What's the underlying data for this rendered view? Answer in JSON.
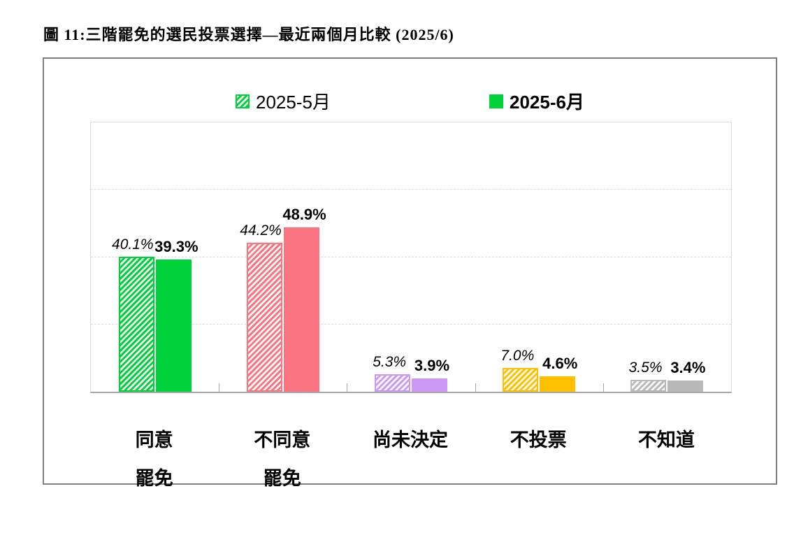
{
  "title": "圖 11:三階罷免的選民投票選擇—最近兩個月比較 (2025/6)",
  "legend": [
    {
      "label": "2025-5月",
      "style": "hatched"
    },
    {
      "label": "2025-6月",
      "style": "solid"
    }
  ],
  "chart_data": {
    "type": "bar",
    "title": "圖 11:三階罷免的選民投票選擇—最近兩個月比較 (2025/6)",
    "categories": [
      "同意罷免",
      "不同意罷免",
      "尚未決定",
      "不投票",
      "不知道"
    ],
    "category_lines": [
      [
        "同意",
        "罷免"
      ],
      [
        "不同意",
        "罷免"
      ],
      [
        "尚未決定"
      ],
      [
        "不投票"
      ],
      [
        "不知道"
      ]
    ],
    "series": [
      {
        "name": "2025-5月",
        "pattern": "hatched",
        "values": [
          40.1,
          44.2,
          5.3,
          7.0,
          3.5
        ],
        "labels": [
          "40.1%",
          "44.2%",
          "5.3%",
          "7.0%",
          "3.5%"
        ]
      },
      {
        "name": "2025-6月",
        "pattern": "solid",
        "values": [
          39.3,
          48.9,
          3.9,
          4.6,
          3.4
        ],
        "labels": [
          "39.3%",
          "48.9%",
          "3.9%",
          "4.6%",
          "3.4%"
        ]
      }
    ],
    "category_colors": [
      "#00d23a",
      "#fb7580",
      "#cd99f6",
      "#ffc000",
      "#b9b9b9"
    ],
    "xlabel": "",
    "ylabel": "",
    "ylim": [
      0,
      80
    ],
    "gridline_step": 20,
    "grid": "dashed-horizontal",
    "legend_position": "top",
    "axis_color": "#a6a6a6",
    "grid_color": "#d9d9d9"
  }
}
